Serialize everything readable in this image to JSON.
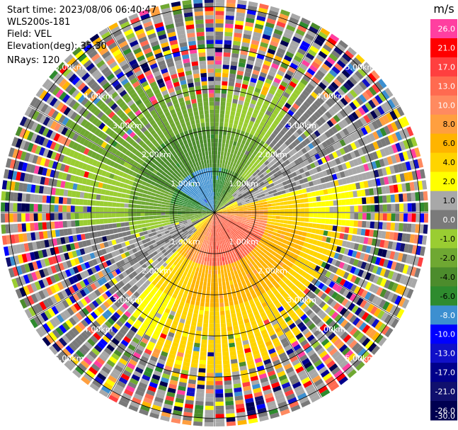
{
  "info": {
    "start_time": "Start time: 2023/08/06 06:40:47",
    "station": "WLS200s-181",
    "field": "Field: VEL",
    "elevation": "Elevation(deg): 35.30",
    "nrays": "NRays: 120"
  },
  "colorbar": {
    "unit": "m/s",
    "ticks": [
      "26.0",
      "21.0",
      "17.0",
      "13.0",
      "10.0",
      "8.0",
      "6.0",
      "4.0",
      "2.0",
      "1.0",
      "0.0",
      "-1.0",
      "-2.0",
      "-4.0",
      "-6.0",
      "-8.0",
      "-10.0",
      "-13.0",
      "-17.0",
      "-21.0",
      "-26.0",
      "-30.0"
    ],
    "colors": [
      "#ff3fa0",
      "#ff0000",
      "#ff3f3f",
      "#ff6a50",
      "#ff8a60",
      "#ff9f3f",
      "#ffb400",
      "#ffd400",
      "#ffff00",
      "#a8a8a8",
      "#7a7a7a",
      "#9acd32",
      "#6fa832",
      "#4c8c2c",
      "#2e8b2e",
      "#3c8fd0",
      "#0000ff",
      "#1010c8",
      "#00008b",
      "#10106e",
      "#000050"
    ],
    "label_text_color_light": "#ffffff",
    "label_text_color_dark": "#000000"
  },
  "chart_data": {
    "type": "heatmap",
    "projection": "polar-ppi",
    "title": "",
    "nrays": 120,
    "range_rings_km": [
      1,
      2,
      3,
      4,
      5
    ],
    "range_ring_labels": [
      "1.00km",
      "2.00km",
      "3.00km",
      "4.00km",
      "5.00km"
    ],
    "max_range_km": 5.2,
    "regions": [
      {
        "description": "near-range blue/green core",
        "range_km": [
          0,
          1.2
        ],
        "velocity_ms": -8.0
      },
      {
        "description": "green band north-west",
        "range_km": [
          1.0,
          2.2
        ],
        "velocity_ms": -4.0
      },
      {
        "description": "light green band north",
        "range_km": [
          1.8,
          3.2
        ],
        "velocity_ms": -2.0
      },
      {
        "description": "red/orange core south-east",
        "range_km": [
          0,
          1.4
        ],
        "velocity_ms": 13.0
      },
      {
        "description": "orange/yellow band south",
        "range_km": [
          1.2,
          2.4
        ],
        "velocity_ms": 6.0
      },
      {
        "description": "yellow band south",
        "range_km": [
          2.0,
          3.3
        ],
        "velocity_ms": 4.0
      },
      {
        "description": "grey near-zero sectors east and west",
        "range_km": [
          0.5,
          3.5
        ],
        "velocity_ms": 0.0
      },
      {
        "description": "noisy mixed colors beyond",
        "range_km": [
          3.2,
          5.2
        ],
        "velocity_ms": null
      }
    ]
  }
}
